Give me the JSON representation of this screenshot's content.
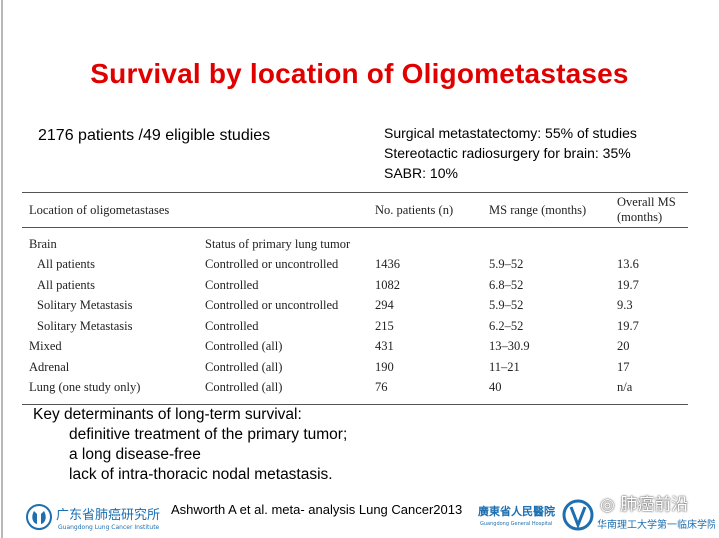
{
  "title": "Survival by location of Oligometastases",
  "patients_summary": "2176 patients /49 eligible studies",
  "treatment_stats": [
    "Surgical metastatectomy: 55% of studies",
    "Stereotactic radiosurgery for brain: 35%",
    "SABR: 10%"
  ],
  "table": {
    "headers": [
      "Location of oligometastases",
      "",
      "No. patients (n)",
      "MS range (months)",
      "Overall MS (months)"
    ],
    "rows": [
      [
        "Brain",
        "Status of primary lung tumor",
        "",
        "",
        ""
      ],
      [
        "All patients",
        "Controlled or uncontrolled",
        "1436",
        "5.9–52",
        "13.6"
      ],
      [
        "All patients",
        "Controlled",
        "1082",
        "6.8–52",
        "19.7"
      ],
      [
        "Solitary Metastasis",
        "Controlled or uncontrolled",
        "294",
        "5.9–52",
        "9.3"
      ],
      [
        "Solitary Metastasis",
        "Controlled",
        "215",
        "6.2–52",
        "19.7"
      ],
      [
        "Mixed",
        "Controlled (all)",
        "431",
        "13–30.9",
        "20"
      ],
      [
        "Adrenal",
        "Controlled (all)",
        "190",
        "11–21",
        "17"
      ],
      [
        "Lung (one study only)",
        "Controlled (all)",
        "76",
        "40",
        "n/a"
      ]
    ]
  },
  "key_determinants": {
    "heading": "Key determinants of long-term survival:",
    "items": [
      "definitive treatment of the primary tumor;",
      "a long disease-free",
      "lack of intra-thoracic nodal metastasis."
    ]
  },
  "citation": "Ashworth A et al. meta- analysis Lung Cancer2013",
  "logos": {
    "left_cn": "广东省肺癌研究所",
    "left_en": "Guangdong Lung Cancer Institute",
    "right_cn": "廣東省人民醫院",
    "right_en": "Guangdong General Hospital",
    "right_cn2": "华南理工大学第一临床学院",
    "watermark": "肺癌前沿"
  }
}
